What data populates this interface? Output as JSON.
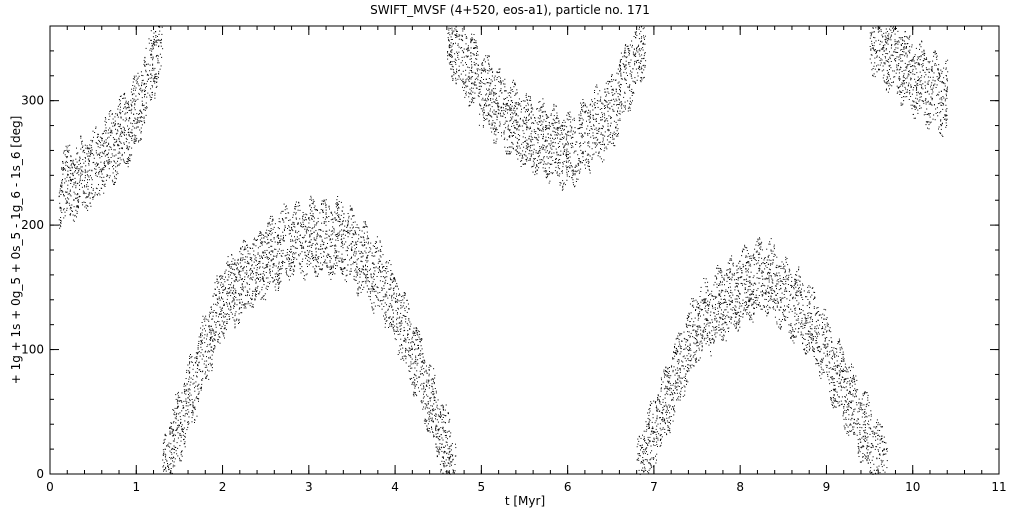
{
  "chart_data": {
    "type": "scatter",
    "title": "SWIFT_MVSF (4+520, eos-a1), particle no. 171",
    "xlabel": "t [Myr]",
    "ylabel": "+ 1g + 1s + 0g_5 + 0s_5 - 1g_6 - 1s_6 [deg]",
    "xlim": [
      0,
      11
    ],
    "ylim": [
      0,
      360
    ],
    "x_ticks": [
      0,
      1,
      2,
      3,
      4,
      5,
      6,
      7,
      8,
      9,
      10,
      11
    ],
    "y_ticks": [
      0,
      100,
      200,
      300
    ],
    "grid": false,
    "marker": "dot",
    "marker_color": "#000000",
    "series_trend": [
      {
        "x": [
          0.1,
          0.5,
          1.0,
          1.3
        ],
        "y": [
          230,
          245,
          290,
          355
        ]
      },
      {
        "x": [
          1.3,
          2.0,
          2.7,
          3.0,
          3.4,
          3.9,
          4.3,
          4.7
        ],
        "y": [
          0,
          140,
          185,
          190,
          190,
          150,
          80,
          0
        ]
      },
      {
        "x": [
          4.6,
          5.0,
          5.5,
          6.0,
          6.5,
          6.9
        ],
        "y": [
          355,
          310,
          275,
          260,
          290,
          355
        ]
      },
      {
        "x": [
          6.8,
          7.5,
          8.0,
          8.3,
          8.8,
          9.3,
          9.7
        ],
        "y": [
          0,
          120,
          150,
          160,
          125,
          55,
          0
        ]
      },
      {
        "x": [
          9.5,
          10.0,
          10.4
        ],
        "y": [
          355,
          320,
          300
        ]
      }
    ],
    "band_halfwidth": 28
  }
}
